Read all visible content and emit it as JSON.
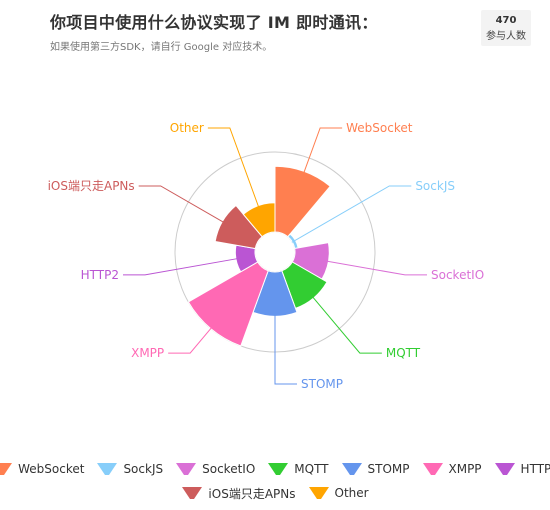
{
  "header": {
    "title": "你项目中使用什么协议实现了 IM 即时通讯：",
    "subtitle": "如果使用第三方SDK，请自行 Google 对应技术。",
    "participants_count": "470",
    "participants_label": "参与人数"
  },
  "chart_data": {
    "type": "nightingale-rose",
    "title": "你项目中使用什么协议实现了 IM 即时通讯：",
    "participants": 470,
    "categories": [
      "WebSocket",
      "SockJS",
      "SocketIO",
      "MQTT",
      "STOMP",
      "XMPP",
      "HTTP2",
      "iOS端只走APNs",
      "Other"
    ],
    "values": [
      171,
      9,
      89,
      104,
      115,
      208,
      51,
      106,
      76
    ],
    "colors": [
      "#ff7f50",
      "#87cefa",
      "#da70d6",
      "#32cd32",
      "#6495ed",
      "#ff69b4",
      "#ba55d3",
      "#cd5c5c",
      "#ffa500"
    ],
    "legend": "bottom",
    "grid": false
  }
}
